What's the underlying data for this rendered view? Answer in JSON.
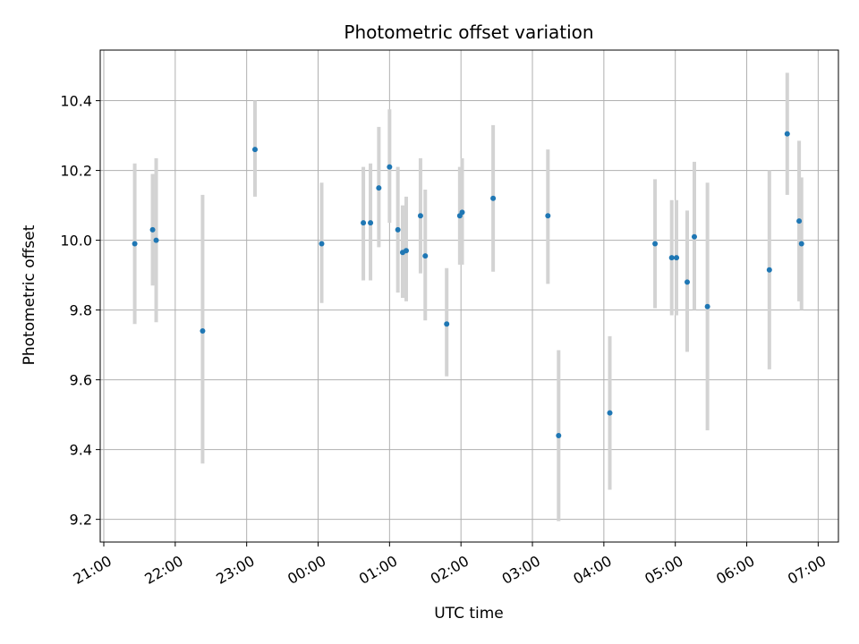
{
  "chart_data": {
    "type": "scatter",
    "title": "Photometric offset variation",
    "xlabel": "UTC time",
    "ylabel": "Photometric offset",
    "x_ticks": [
      "21:00",
      "22:00",
      "23:00",
      "00:00",
      "01:00",
      "02:00",
      "03:00",
      "04:00",
      "05:00",
      "06:00",
      "07:00"
    ],
    "y_ticks": [
      "9.2",
      "9.4",
      "9.6",
      "9.8",
      "10.0",
      "10.2",
      "10.4"
    ],
    "xlim": [
      "20:57",
      "07:17"
    ],
    "ylim": [
      9.135,
      10.545
    ],
    "grid": true,
    "colors": {
      "points": "#1f77b4",
      "errorbars": "#d3d3d3",
      "grid": "#b0b0b0"
    },
    "points": [
      {
        "time": "21:26",
        "y": 9.99,
        "err_low": 9.76,
        "err_high": 10.22
      },
      {
        "time": "21:41",
        "y": 10.03,
        "err_low": 9.87,
        "err_high": 10.19
      },
      {
        "time": "21:44",
        "y": 10.0,
        "err_low": 9.765,
        "err_high": 10.235
      },
      {
        "time": "22:23",
        "y": 9.74,
        "err_low": 9.36,
        "err_high": 10.13
      },
      {
        "time": "23:07",
        "y": 10.26,
        "err_low": 10.125,
        "err_high": 10.4
      },
      {
        "time": "00:03",
        "y": 9.99,
        "err_low": 9.82,
        "err_high": 10.165
      },
      {
        "time": "00:38",
        "y": 10.05,
        "err_low": 9.885,
        "err_high": 10.21
      },
      {
        "time": "00:44",
        "y": 10.05,
        "err_low": 9.885,
        "err_high": 10.22
      },
      {
        "time": "00:51",
        "y": 10.15,
        "err_low": 9.98,
        "err_high": 10.325
      },
      {
        "time": "01:00",
        "y": 10.21,
        "err_low": 10.05,
        "err_high": 10.375
      },
      {
        "time": "01:07",
        "y": 10.03,
        "err_low": 9.85,
        "err_high": 10.21
      },
      {
        "time": "01:11",
        "y": 9.965,
        "err_low": 9.835,
        "err_high": 10.1
      },
      {
        "time": "01:14",
        "y": 9.97,
        "err_low": 9.825,
        "err_high": 10.125
      },
      {
        "time": "01:26",
        "y": 10.07,
        "err_low": 9.905,
        "err_high": 10.235
      },
      {
        "time": "01:30",
        "y": 9.955,
        "err_low": 9.77,
        "err_high": 10.145
      },
      {
        "time": "01:48",
        "y": 9.76,
        "err_low": 9.61,
        "err_high": 9.92
      },
      {
        "time": "01:59",
        "y": 10.07,
        "err_low": 9.93,
        "err_high": 10.21
      },
      {
        "time": "02:01",
        "y": 10.08,
        "err_low": 9.93,
        "err_high": 10.235
      },
      {
        "time": "02:27",
        "y": 10.12,
        "err_low": 9.91,
        "err_high": 10.33
      },
      {
        "time": "03:13",
        "y": 10.07,
        "err_low": 9.875,
        "err_high": 10.26
      },
      {
        "time": "03:22",
        "y": 9.44,
        "err_low": 9.195,
        "err_high": 9.685
      },
      {
        "time": "04:05",
        "y": 9.505,
        "err_low": 9.285,
        "err_high": 9.725
      },
      {
        "time": "04:43",
        "y": 9.99,
        "err_low": 9.805,
        "err_high": 10.175
      },
      {
        "time": "04:57",
        "y": 9.95,
        "err_low": 9.785,
        "err_high": 10.115
      },
      {
        "time": "05:01",
        "y": 9.95,
        "err_low": 9.785,
        "err_high": 10.115
      },
      {
        "time": "05:10",
        "y": 9.88,
        "err_low": 9.68,
        "err_high": 10.085
      },
      {
        "time": "05:16",
        "y": 10.01,
        "err_low": 9.8,
        "err_high": 10.225
      },
      {
        "time": "05:27",
        "y": 9.81,
        "err_low": 9.455,
        "err_high": 10.165
      },
      {
        "time": "06:19",
        "y": 9.915,
        "err_low": 9.63,
        "err_high": 10.2
      },
      {
        "time": "06:34",
        "y": 10.305,
        "err_low": 10.13,
        "err_high": 10.48
      },
      {
        "time": "06:44",
        "y": 10.055,
        "err_low": 9.825,
        "err_high": 10.285
      },
      {
        "time": "06:46",
        "y": 9.99,
        "err_low": 9.8,
        "err_high": 10.18
      }
    ]
  }
}
